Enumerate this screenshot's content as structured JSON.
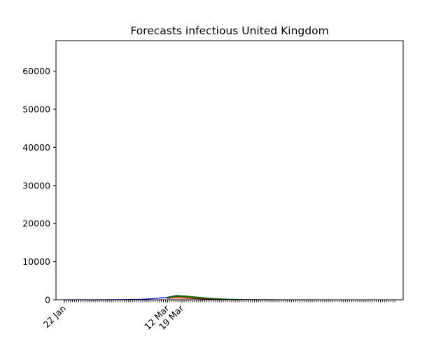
{
  "chart_data": {
    "type": "area",
    "title": "Forecasts infectious United Kingdom",
    "xlabel": "",
    "ylabel": "",
    "x_start": "2020-01-22",
    "x_end": "2020-06-30",
    "ylim": [
      0,
      68000
    ],
    "yticks": [
      0,
      10000,
      20000,
      30000,
      40000,
      50000,
      60000
    ],
    "xtick_labels": [
      {
        "date": "2020-01-22",
        "label": "22 Jan"
      },
      {
        "date": "2020-03-12",
        "label": "12 Mar"
      },
      {
        "date": "2020-03-19",
        "label": "19 Mar"
      }
    ],
    "minor_ticks": "daily",
    "grid": false,
    "legend": "none",
    "series": [
      {
        "kind": "line",
        "color": "#0000ff",
        "points": [
          [
            "2020-01-22",
            0
          ],
          [
            "2020-02-10",
            5
          ],
          [
            "2020-02-20",
            30
          ],
          [
            "2020-02-28",
            110
          ],
          [
            "2020-03-05",
            300
          ],
          [
            "2020-03-12",
            650
          ],
          [
            "2020-03-16",
            800
          ]
        ]
      },
      {
        "kind": "band",
        "color": "#ff7f0e",
        "edge": "#8b0000",
        "upper": [
          [
            "2020-03-12",
            550
          ],
          [
            "2020-03-16",
            900
          ],
          [
            "2020-03-20",
            800
          ],
          [
            "2020-03-25",
            560
          ],
          [
            "2020-04-01",
            300
          ],
          [
            "2020-04-10",
            110
          ],
          [
            "2020-04-20",
            30
          ],
          [
            "2020-05-05",
            5
          ],
          [
            "2020-06-30",
            0
          ]
        ],
        "lower": [
          [
            "2020-03-12",
            350
          ],
          [
            "2020-03-16",
            500
          ],
          [
            "2020-03-20",
            420
          ],
          [
            "2020-03-25",
            280
          ],
          [
            "2020-04-01",
            140
          ],
          [
            "2020-04-10",
            45
          ],
          [
            "2020-04-20",
            10
          ],
          [
            "2020-05-05",
            0
          ],
          [
            "2020-06-30",
            0
          ]
        ]
      },
      {
        "kind": "band",
        "color": "#2ca02c",
        "edge": "#006400",
        "upper": [
          [
            "2020-03-12",
            700
          ],
          [
            "2020-03-16",
            1150
          ],
          [
            "2020-03-20",
            1050
          ],
          [
            "2020-03-25",
            780
          ],
          [
            "2020-04-01",
            450
          ],
          [
            "2020-04-10",
            190
          ],
          [
            "2020-04-20",
            60
          ],
          [
            "2020-05-05",
            10
          ],
          [
            "2020-06-30",
            0
          ]
        ],
        "lower": [
          [
            "2020-03-12",
            550
          ],
          [
            "2020-03-16",
            900
          ],
          [
            "2020-03-20",
            800
          ],
          [
            "2020-03-25",
            560
          ],
          [
            "2020-04-01",
            300
          ],
          [
            "2020-04-10",
            110
          ],
          [
            "2020-04-20",
            30
          ],
          [
            "2020-05-05",
            5
          ],
          [
            "2020-06-30",
            0
          ]
        ]
      }
    ]
  }
}
